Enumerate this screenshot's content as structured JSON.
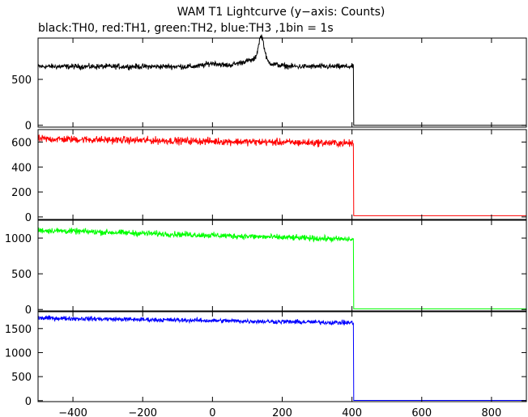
{
  "title": "WAM T1 Lightcurve (y−axis: Counts)",
  "subtitle": "black:TH0, red:TH1, green:TH2, blue:TH3 ,1bin = 1s",
  "chart_data": [
    {
      "type": "line",
      "series": [
        {
          "name": "TH0",
          "color": "#000000"
        }
      ],
      "xlim": [
        -500,
        900
      ],
      "ylim": [
        -20,
        950
      ],
      "yticks": [
        0,
        500
      ],
      "ytick_labels": [
        "0",
        "500"
      ],
      "xticks": [
        -400,
        -200,
        0,
        200,
        400,
        600,
        800
      ],
      "baseline": 640,
      "noise": 25,
      "drop_at": 405,
      "after": 0,
      "bumps": [
        {
          "x": 140,
          "height": 270,
          "width": 8
        },
        {
          "x": 120,
          "height": 70,
          "width": 40
        },
        {
          "x": 0,
          "height": 35,
          "width": 20
        }
      ]
    },
    {
      "type": "line",
      "series": [
        {
          "name": "TH1",
          "color": "#ff0000"
        }
      ],
      "xlim": [
        -500,
        900
      ],
      "ylim": [
        -20,
        700
      ],
      "yticks": [
        0,
        200,
        400,
        600
      ],
      "ytick_labels": [
        "0",
        "200",
        "400",
        "600"
      ],
      "xticks": [
        -400,
        -200,
        0,
        200,
        400,
        600,
        800
      ],
      "start": 625,
      "end": 590,
      "noise": 25,
      "drop_at": 405,
      "after": 10,
      "bumps": []
    },
    {
      "type": "line",
      "series": [
        {
          "name": "TH2",
          "color": "#00ff00"
        }
      ],
      "xlim": [
        -500,
        900
      ],
      "ylim": [
        -20,
        1250
      ],
      "yticks": [
        0,
        500,
        1000
      ],
      "ytick_labels": [
        "0",
        "500",
        "1000"
      ],
      "xticks": [
        -400,
        -200,
        0,
        200,
        400,
        600,
        800
      ],
      "start": 1110,
      "end": 980,
      "noise": 35,
      "drop_at": 405,
      "after": 10,
      "bumps": []
    },
    {
      "type": "line",
      "series": [
        {
          "name": "TH3",
          "color": "#0000ff"
        }
      ],
      "xlim": [
        -500,
        900
      ],
      "ylim": [
        -20,
        1850
      ],
      "yticks": [
        0,
        500,
        1000,
        1500
      ],
      "ytick_labels": [
        "0",
        "500",
        "1000",
        "1500"
      ],
      "xticks": [
        -400,
        -200,
        0,
        200,
        400,
        600,
        800
      ],
      "xtick_labels": [
        "−400",
        "−200",
        "0",
        "200",
        "400",
        "600",
        "800"
      ],
      "start": 1720,
      "end": 1620,
      "noise": 40,
      "drop_at": 405,
      "after": 5,
      "bumps": []
    }
  ]
}
